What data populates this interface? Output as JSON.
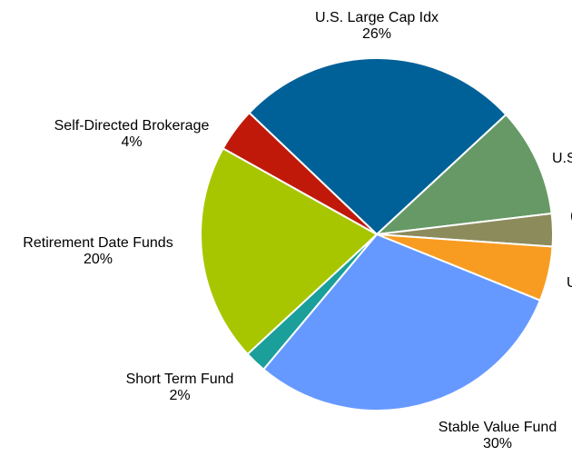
{
  "chart_data": {
    "type": "pie",
    "categories": [
      "U.S. Large Cap Idx",
      "U.S",
      "(",
      "U",
      "Stable Value Fund",
      "Short Term Fund",
      "Retirement Date Funds",
      "Self-Directed Brokerage"
    ],
    "values": [
      26,
      10,
      3,
      5,
      30,
      2,
      20,
      4
    ],
    "value_labels": [
      "26%",
      null,
      null,
      null,
      "30%",
      "2%",
      "20%",
      "4%"
    ],
    "colors": [
      "#006098",
      "#669966",
      "#8b8b5c",
      "#f89c21",
      "#6699ff",
      "#1a9f9a",
      "#a8c600",
      "#c0190a"
    ]
  }
}
